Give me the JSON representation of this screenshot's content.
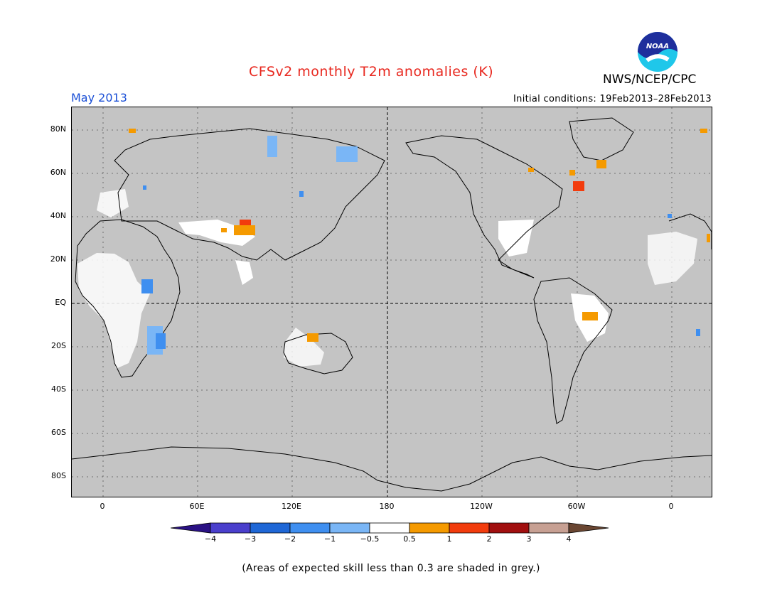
{
  "header": {
    "title": "CFSv2 monthly T2m anomalies (K)",
    "month": "May 2013",
    "initial_conditions": "Initial conditions: 19Feb2013–28Feb2013",
    "agency": "NWS/NCEP/CPC",
    "logo_text": "NOAA"
  },
  "map": {
    "lat_labels": [
      "80N",
      "60N",
      "40N",
      "20N",
      "EQ",
      "20S",
      "40S",
      "60S",
      "80S"
    ],
    "lon_labels": [
      "0",
      "60E",
      "120E",
      "180",
      "120W",
      "60W",
      "0"
    ],
    "land_color": "#ffffff",
    "unskilled_color": "#c4c4c4"
  },
  "colorbar": {
    "tick_labels": [
      "−4",
      "−3",
      "−2",
      "−1",
      "−0.5",
      "0.5",
      "1",
      "2",
      "3",
      "4"
    ],
    "colors": [
      "#2a1184",
      "#4a3fcc",
      "#1f67d6",
      "#3f8ff0",
      "#7ab6f6",
      "#ffffff",
      "#f59a00",
      "#f23c0d",
      "#a10f0f",
      "#c7a093",
      "#6a4632"
    ]
  },
  "footnote": "(Areas of expected skill less than 0.3 are shaded in grey.)"
}
